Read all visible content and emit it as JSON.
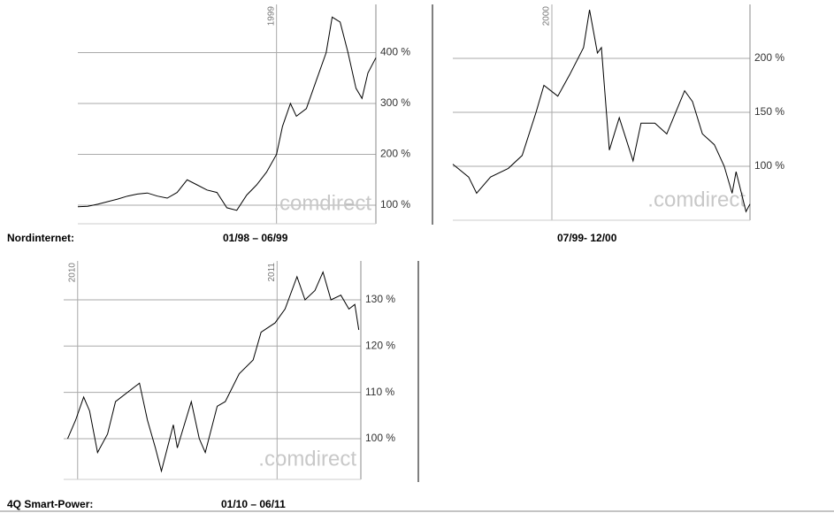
{
  "chart_data": [
    {
      "type": "line",
      "name_label": "Nordinternet:",
      "period": "01/98 – 06/99",
      "watermark": ".comdirect",
      "x": [
        1998.0,
        1998.05,
        1998.1,
        1998.15,
        1998.2,
        1998.25,
        1998.3,
        1998.35,
        1998.4,
        1998.45,
        1998.5,
        1998.55,
        1998.6,
        1998.65,
        1998.7,
        1998.75,
        1998.8,
        1998.85,
        1998.9,
        1998.95,
        1999.0,
        1999.03,
        1999.07,
        1999.1,
        1999.15,
        1999.2,
        1999.25,
        1999.28,
        1999.32,
        1999.36,
        1999.4,
        1999.43,
        1999.46,
        1999.5
      ],
      "values": [
        97,
        98,
        102,
        107,
        112,
        118,
        122,
        124,
        118,
        114,
        125,
        150,
        140,
        130,
        125,
        95,
        90,
        120,
        140,
        165,
        200,
        255,
        300,
        275,
        290,
        345,
        400,
        470,
        460,
        400,
        330,
        310,
        360,
        390
      ],
      "color": "#000000",
      "xlim": [
        1998.0,
        1999.5
      ],
      "xticks": [
        {
          "value": 1999,
          "label": "1999"
        }
      ],
      "ylim": [
        63.5,
        494.8
      ],
      "yticks": [
        {
          "value": 100,
          "label": "100 %"
        },
        {
          "value": 200,
          "label": "200 %"
        },
        {
          "value": 300,
          "label": "300 %"
        },
        {
          "value": 400,
          "label": "400 %"
        }
      ],
      "grid": true
    },
    {
      "type": "line",
      "period": "07/99- 12/00",
      "watermark": ".comdirect",
      "x": [
        1999.5,
        1999.58,
        1999.62,
        1999.69,
        1999.78,
        1999.85,
        1999.92,
        1999.96,
        2000.03,
        2000.09,
        2000.16,
        2000.19,
        2000.23,
        2000.25,
        2000.29,
        2000.34,
        2000.41,
        2000.45,
        2000.52,
        2000.58,
        2000.67,
        2000.71,
        2000.76,
        2000.82,
        2000.87,
        2000.91,
        2000.93,
        2000.98,
        2001.0
      ],
      "values": [
        102,
        90,
        75,
        90,
        98,
        110,
        150,
        175,
        165,
        185,
        210,
        245,
        205,
        210,
        115,
        145,
        105,
        140,
        140,
        130,
        170,
        160,
        130,
        120,
        100,
        75,
        95,
        58,
        65
      ],
      "color": "#000000",
      "xlim": [
        1999.5,
        2001.0
      ],
      "xticks": [
        {
          "value": 2000,
          "label": "2000"
        }
      ],
      "ylim": [
        50,
        250
      ],
      "yticks": [
        {
          "value": 100,
          "label": "100 %"
        },
        {
          "value": 150,
          "label": "150 %"
        },
        {
          "value": 200,
          "label": "200 %"
        }
      ],
      "grid": true
    },
    {
      "type": "line",
      "name_label": "4Q Smart-Power:",
      "period": "01/10 – 06/11",
      "watermark": ".comdirect",
      "x": [
        2009.95,
        2009.99,
        2010.03,
        2010.06,
        2010.1,
        2010.15,
        2010.19,
        2010.28,
        2010.31,
        2010.35,
        2010.39,
        2010.42,
        2010.48,
        2010.5,
        2010.57,
        2010.61,
        2010.64,
        2010.7,
        2010.74,
        2010.81,
        2010.88,
        2010.92,
        2010.99,
        2011.04,
        2011.1,
        2011.14,
        2011.19,
        2011.23,
        2011.27,
        2011.32,
        2011.36,
        2011.39,
        2011.41
      ],
      "values": [
        100,
        104,
        109,
        106,
        97,
        101,
        108,
        111,
        112,
        104,
        98,
        93,
        103,
        98,
        108,
        100,
        97,
        107,
        108,
        114,
        117,
        123,
        125,
        128,
        135,
        130,
        132,
        136,
        130,
        131,
        128,
        129,
        123.5
      ],
      "color": "#000000",
      "xlim": [
        2009.93,
        2011.42
      ],
      "xticks": [
        {
          "value": 2010,
          "label": "2010"
        },
        {
          "value": 2011,
          "label": "2011"
        }
      ],
      "ylim": [
        91.2,
        138.4
      ],
      "yticks": [
        {
          "value": 100,
          "label": "100 %"
        },
        {
          "value": 110,
          "label": "110 %"
        },
        {
          "value": 120,
          "label": "120 %"
        },
        {
          "value": 130,
          "label": "130 %"
        }
      ],
      "grid": true
    }
  ]
}
